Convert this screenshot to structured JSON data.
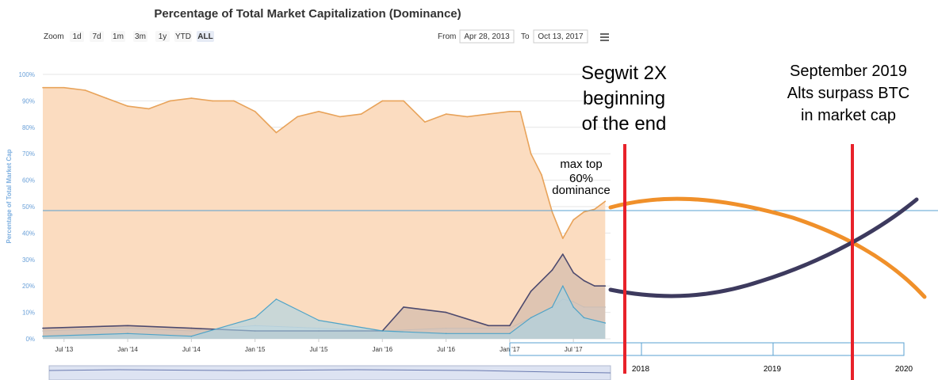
{
  "toolbar": {
    "zoom_label": "Zoom",
    "zoom_buttons": [
      "1d",
      "7d",
      "1m",
      "3m",
      "1y",
      "YTD",
      "ALL"
    ],
    "active_zoom": "ALL",
    "from_label": "From",
    "from_value": "Apr 28, 2013",
    "to_label": "To",
    "to_value": "Oct 13, 2017",
    "menu_icon": "hamburger-menu-icon"
  },
  "chart_data": {
    "type": "area",
    "title": "Percentage of Total Market Capitalization (Dominance)",
    "ylabel": "Percentage of Total Market Cap",
    "ylim": [
      0,
      100
    ],
    "y_ticks": [
      "0%",
      "10%",
      "20%",
      "30%",
      "40%",
      "50%",
      "60%",
      "70%",
      "80%",
      "90%",
      "100%"
    ],
    "x_ticks": [
      "Jul '13",
      "Jan '14",
      "Jul '14",
      "Jan '15",
      "Jul '15",
      "Jan '16",
      "Jul '16",
      "Jan '17",
      "Jul '17"
    ],
    "grid": true,
    "colors": {
      "btc": "#e8a35a",
      "btc_fill": "#fbdcc0",
      "alts": "#4d4a6e",
      "eth": "#4fa3c7",
      "other": "#c9c9c9",
      "reference_line": "#5aa0d0",
      "annotation_line": "#e8222a",
      "projection_btc": "#f0902a",
      "projection_alts": "#3d3a5e"
    },
    "series": [
      {
        "name": "",
        "key": "btc",
        "x": [
          "2013-05",
          "2013-07",
          "2013-09",
          "2013-11",
          "2014-01",
          "2014-03",
          "2014-05",
          "2014-07",
          "2014-09",
          "2014-11",
          "2015-01",
          "2015-03",
          "2015-05",
          "2015-07",
          "2015-09",
          "2015-11",
          "2016-01",
          "2016-03",
          "2016-05",
          "2016-07",
          "2016-09",
          "2016-11",
          "2017-01",
          "2017-02",
          "2017-03",
          "2017-04",
          "2017-05",
          "2017-06",
          "2017-07",
          "2017-08",
          "2017-09",
          "2017-10"
        ],
        "values": [
          95,
          95,
          94,
          91,
          88,
          87,
          90,
          91,
          90,
          90,
          86,
          78,
          84,
          86,
          84,
          85,
          90,
          90,
          82,
          85,
          84,
          85,
          86,
          86,
          70,
          62,
          48,
          38,
          45,
          48,
          49,
          52
        ]
      },
      {
        "name": "",
        "key": "alts",
        "x": [
          "2013-05",
          "2014-01",
          "2014-07",
          "2015-01",
          "2015-07",
          "2016-01",
          "2016-03",
          "2016-07",
          "2016-11",
          "2017-01",
          "2017-03",
          "2017-05",
          "2017-06",
          "2017-07",
          "2017-08",
          "2017-09",
          "2017-10"
        ],
        "values": [
          4,
          5,
          4,
          3,
          3,
          3,
          12,
          10,
          5,
          5,
          18,
          26,
          32,
          25,
          22,
          20,
          20
        ]
      },
      {
        "name": "",
        "key": "eth",
        "x": [
          "2013-05",
          "2014-01",
          "2014-07",
          "2015-01",
          "2015-03",
          "2015-07",
          "2016-01",
          "2016-07",
          "2017-01",
          "2017-03",
          "2017-05",
          "2017-06",
          "2017-07",
          "2017-08",
          "2017-10"
        ],
        "values": [
          1,
          2,
          1,
          8,
          15,
          7,
          3,
          2,
          2,
          8,
          12,
          20,
          12,
          8,
          6
        ]
      },
      {
        "name": "",
        "key": "other",
        "x": [
          "2013-05",
          "2014-01",
          "2014-07",
          "2015-01",
          "2015-07",
          "2016-01",
          "2016-07",
          "2017-01",
          "2017-03",
          "2017-05",
          "2017-06",
          "2017-07",
          "2017-08",
          "2017-10"
        ],
        "values": [
          3,
          4,
          3,
          5,
          4,
          3,
          4,
          4,
          8,
          12,
          15,
          14,
          12,
          12
        ]
      }
    ],
    "projection": {
      "x_ticks": [
        "2018",
        "2019",
        "2020"
      ],
      "annotations": [
        {
          "id": "segwit",
          "text_lines": [
            "Segwit 2X",
            "beginning",
            "of the end"
          ]
        },
        {
          "id": "crossover",
          "text_lines": [
            "September 2019",
            "Alts surpass BTC",
            "in market cap"
          ]
        },
        {
          "id": "max-top",
          "text_lines": [
            "max top",
            "60%",
            "dominance"
          ]
        }
      ]
    }
  }
}
